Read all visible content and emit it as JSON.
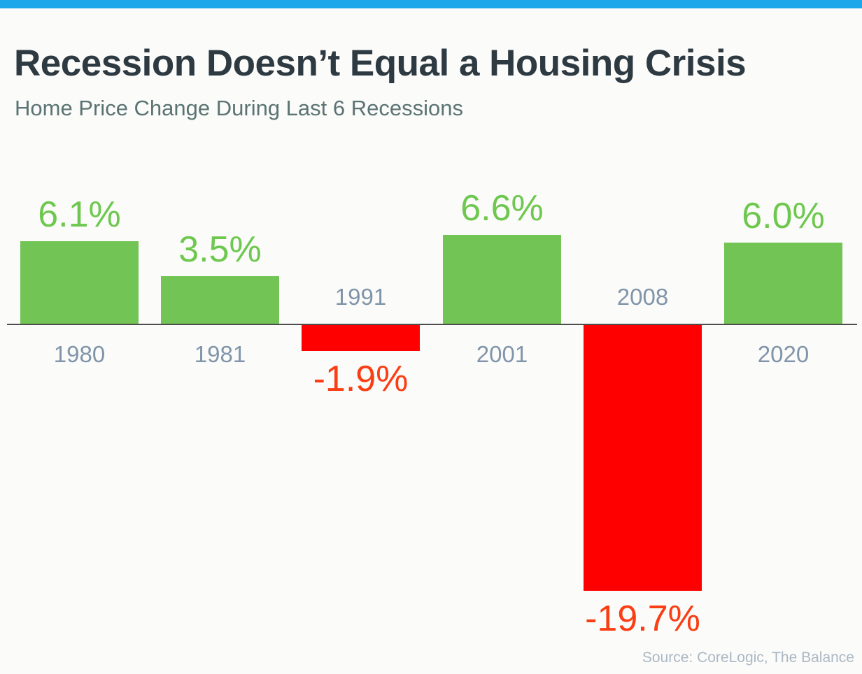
{
  "page": {
    "accent_color": "#1ba7e9",
    "background_color": "#fbfbf9"
  },
  "header": {
    "title": "Recession Doesn’t Equal a Housing Crisis",
    "subtitle": "Home Price Change During Last 6 Recessions"
  },
  "footer": {
    "source": "Source: CoreLogic, The Balance"
  },
  "chart_data": {
    "type": "bar",
    "title": "Recession Doesn’t Equal a Housing Crisis",
    "subtitle": "Home Price Change During Last 6 Recessions",
    "categories": [
      "1980",
      "1981",
      "1991",
      "2001",
      "2008",
      "2020"
    ],
    "values": [
      6.1,
      3.5,
      -1.9,
      6.6,
      -19.7,
      6.0
    ],
    "value_labels": [
      "6.1%",
      "3.5%",
      "-1.9%",
      "6.6%",
      "-19.7%",
      "6.0%"
    ],
    "xlabel": "",
    "ylabel": "",
    "ylim": [
      -22,
      8
    ],
    "grid": false,
    "legend": null,
    "colors": {
      "positive_bar": "#72c455",
      "negative_bar": "#fe0000",
      "positive_value_label": "#6ec84f",
      "negative_value_label": "#fb3d13",
      "category_label": "#8095aa",
      "baseline": "#4d4d4d"
    }
  }
}
